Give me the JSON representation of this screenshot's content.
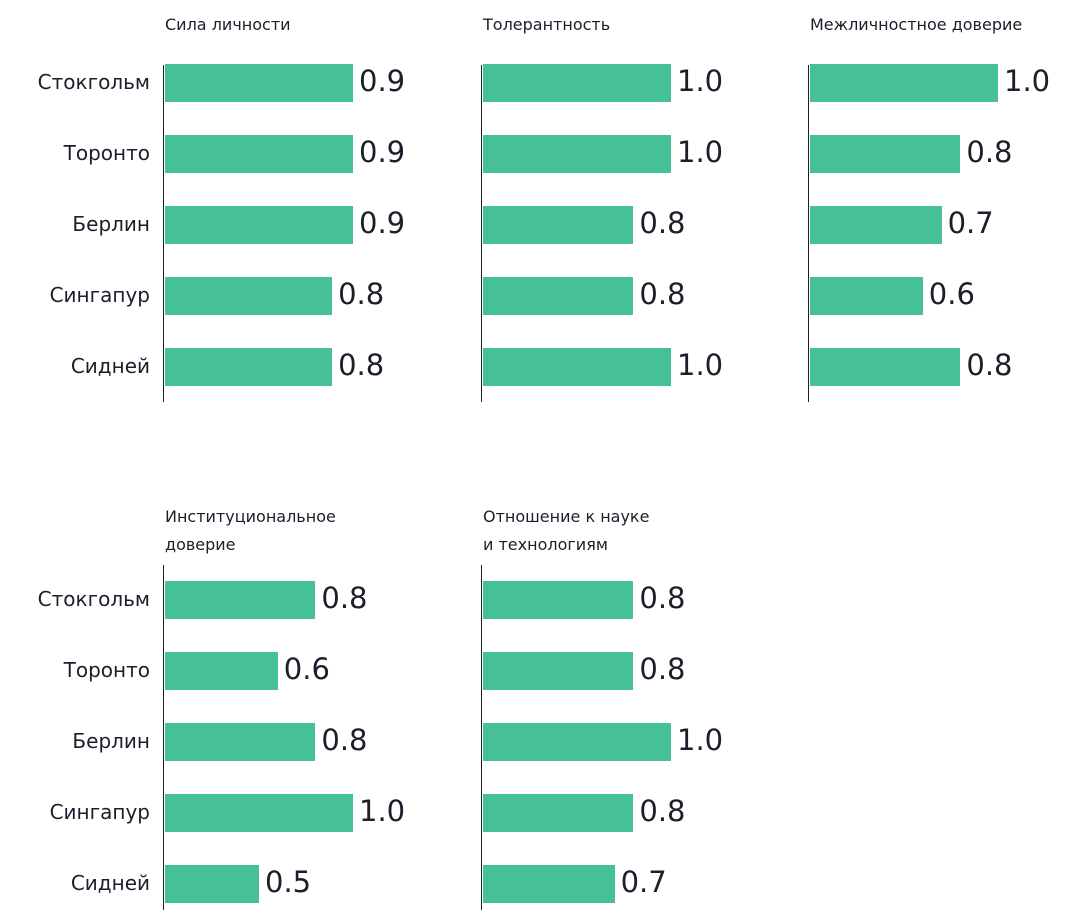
{
  "chart_data": [
    {
      "type": "bar",
      "title": [
        "Сила личности"
      ],
      "categories": [
        "Стокгольм",
        "Торонто",
        "Берлин",
        "Сингапур",
        "Сидней"
      ],
      "values": [
        0.9,
        0.9,
        0.9,
        0.8,
        0.8
      ],
      "value_labels": [
        "0.9",
        "0.9",
        "0.9",
        "0.8",
        "0.8"
      ],
      "color": "#45c195"
    },
    {
      "type": "bar",
      "title": [
        "Толерантность"
      ],
      "values": [
        1.0,
        1.0,
        0.8,
        0.8,
        1.0
      ],
      "value_labels": [
        "1.0",
        "1.0",
        "0.8",
        "0.8",
        "1.0"
      ],
      "color": "#45c195"
    },
    {
      "type": "bar",
      "title": [
        "Межличностное доверие"
      ],
      "values": [
        1.0,
        0.8,
        0.7,
        0.6,
        0.8
      ],
      "value_labels": [
        "1.0",
        "0.8",
        "0.7",
        "0.6",
        "0.8"
      ],
      "color": "#45c195"
    },
    {
      "type": "bar",
      "title": [
        "Институциональное",
        "доверие"
      ],
      "categories": [
        "Стокгольм",
        "Торонто",
        "Берлин",
        "Сингапур",
        "Сидней"
      ],
      "values": [
        0.8,
        0.6,
        0.8,
        1.0,
        0.5
      ],
      "value_labels": [
        "0.8",
        "0.6",
        "0.8",
        "1.0",
        "0.5"
      ],
      "color": "#45c195"
    },
    {
      "type": "bar",
      "title": [
        "Отношение к науке",
        "и технологиям"
      ],
      "values": [
        0.8,
        0.8,
        1.0,
        0.8,
        0.7
      ],
      "value_labels": [
        "0.8",
        "0.8",
        "1.0",
        "0.8",
        "0.7"
      ],
      "color": "#45c195"
    }
  ]
}
